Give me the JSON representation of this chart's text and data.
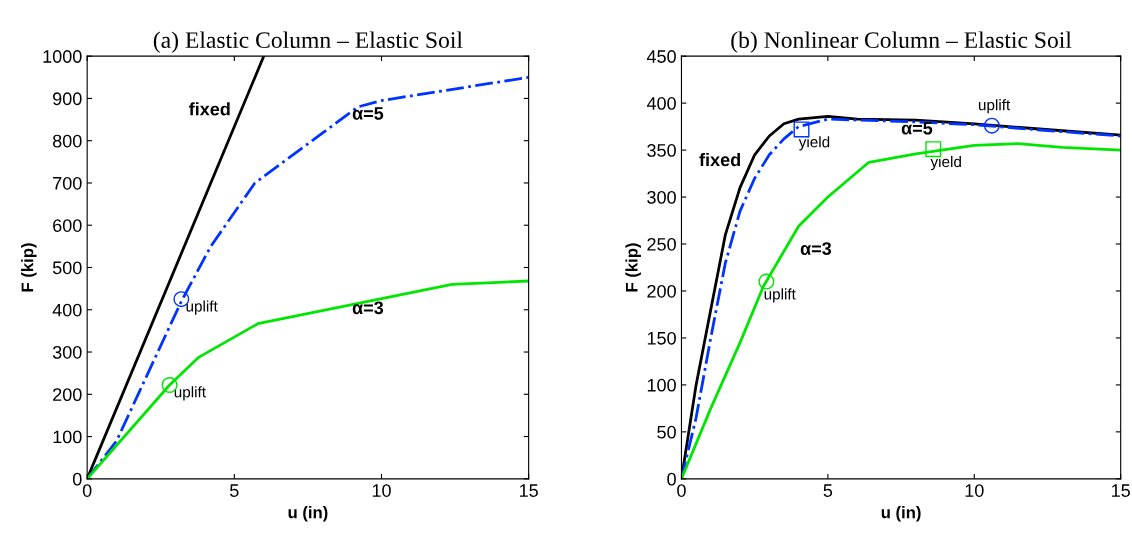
{
  "chart_data": [
    {
      "type": "line",
      "title": "(a) Elastic Column – Elastic Soil",
      "xlabel": "u (in)",
      "ylabel": "F (kip)",
      "xlim": [
        0,
        15
      ],
      "ylim": [
        0,
        1000
      ],
      "xticks": [
        0,
        5,
        10,
        15
      ],
      "yticks": [
        0,
        100,
        200,
        300,
        400,
        500,
        600,
        700,
        800,
        900,
        1000
      ],
      "grid": false,
      "legend": false,
      "series": [
        {
          "name": "fixed",
          "color": "#000000",
          "line_style": "solid",
          "marker": "none",
          "x": [
            0,
            6
          ],
          "values": [
            0,
            1000
          ]
        },
        {
          "name": "α=5",
          "color": "#0033ff",
          "line_style": "dashdot",
          "marker": "none",
          "x": [
            0,
            1,
            3.2,
            4.2,
            5.7,
            9.2,
            10,
            15
          ],
          "values": [
            0,
            90,
            420,
            550,
            700,
            880,
            895,
            950
          ]
        },
        {
          "name": "α=3",
          "color": "#00e600",
          "line_style": "solid",
          "marker": "none",
          "x": [
            0,
            2.8,
            3.8,
            5.8,
            12.4,
            15
          ],
          "values": [
            0,
            222,
            288,
            367,
            460,
            468
          ]
        },
        {
          "type": "scatter",
          "color": "#0033ff",
          "marker": "circle",
          "x": [
            3.2
          ],
          "values": [
            425
          ]
        },
        {
          "type": "scatter",
          "color": "#00e600",
          "marker": "circle",
          "x": [
            2.8
          ],
          "values": [
            222
          ]
        }
      ],
      "annotations": [
        {
          "text": "uplift",
          "x": 3.2,
          "y": 425
        },
        {
          "text": "uplift",
          "x": 2.8,
          "y": 222
        }
      ]
    },
    {
      "type": "line",
      "title": "(b) Nonlinear Column – Elastic Soil",
      "xlabel": "u (in)",
      "ylabel": "F (kip)",
      "xlim": [
        0,
        15
      ],
      "ylim": [
        0,
        450
      ],
      "xticks": [
        0,
        5,
        10,
        15
      ],
      "yticks": [
        0,
        50,
        100,
        150,
        200,
        250,
        300,
        350,
        400,
        450
      ],
      "grid": false,
      "legend": false,
      "series": [
        {
          "name": "fixed",
          "color": "#000000",
          "line_style": "solid",
          "marker": "none",
          "x": [
            0,
            0.5,
            1,
            1.5,
            2,
            2.5,
            3,
            3.5,
            4,
            5,
            6,
            8,
            10,
            12,
            15
          ],
          "values": [
            0,
            100,
            180,
            260,
            310,
            345,
            365,
            378,
            383,
            386,
            383,
            382,
            378,
            373,
            366
          ]
        },
        {
          "name": "α=5",
          "color": "#0033ff",
          "line_style": "dashdot",
          "marker": "none",
          "x": [
            0,
            0.5,
            1,
            1.5,
            2,
            2.5,
            3,
            3.5,
            4,
            5,
            8,
            10,
            12,
            15
          ],
          "values": [
            0,
            65,
            150,
            230,
            285,
            320,
            345,
            362,
            375,
            383,
            380,
            377,
            372,
            365
          ]
        },
        {
          "name": "α=3",
          "color": "#00e600",
          "line_style": "solid",
          "marker": "none",
          "x": [
            0,
            1,
            2,
            2.8,
            4,
            5,
            6.4,
            8,
            10,
            11.5,
            13,
            15
          ],
          "values": [
            0,
            75,
            145,
            205,
            269,
            300,
            337,
            346,
            355,
            357,
            353,
            350
          ]
        },
        {
          "type": "scatter",
          "color": "#0033ff",
          "marker": "square",
          "x": [
            4.1
          ],
          "values": [
            372
          ]
        },
        {
          "type": "scatter",
          "color": "#00e600",
          "marker": "square",
          "x": [
            8.6
          ],
          "values": [
            351
          ]
        },
        {
          "type": "scatter",
          "color": "#0033ff",
          "marker": "circle",
          "x": [
            10.6
          ],
          "values": [
            376
          ]
        },
        {
          "type": "scatter",
          "color": "#00e600",
          "marker": "circle",
          "x": [
            2.9
          ],
          "values": [
            210
          ]
        }
      ],
      "annotations": [
        {
          "text": "yield",
          "x": 4.1,
          "y": 372
        },
        {
          "text": "yield",
          "x": 8.6,
          "y": 351
        },
        {
          "text": "uplift",
          "x": 10.6,
          "y": 376
        },
        {
          "text": "uplift",
          "x": 2.9,
          "y": 210
        }
      ]
    }
  ]
}
